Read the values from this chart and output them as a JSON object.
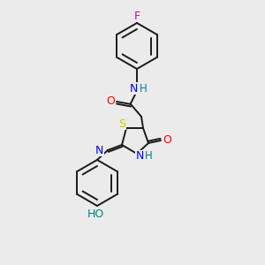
{
  "background_color": "#ebebeb",
  "bond_color": "#1a1a1a",
  "atom_colors": {
    "F": "#cc00cc",
    "N": "#0000ff",
    "O": "#ff0000",
    "S": "#cccc00",
    "H": "#008080",
    "C": "#1a1a1a"
  },
  "figsize": [
    3.0,
    3.0
  ],
  "dpi": 100
}
